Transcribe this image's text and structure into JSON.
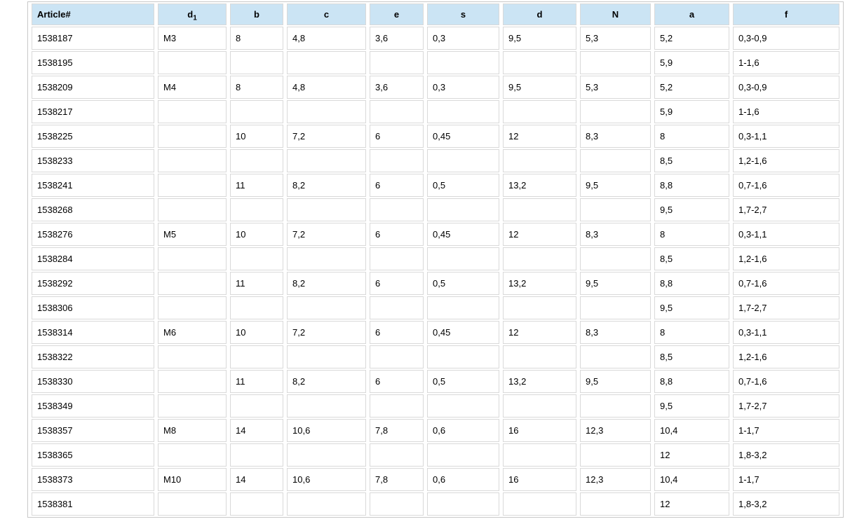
{
  "colors": {
    "header_bg": "#cbe4f4",
    "cell_border": "#d9d9d9",
    "outer_border": "#c9c9c9",
    "text": "#000000",
    "page_bg": "#ffffff"
  },
  "table": {
    "columns": [
      {
        "id": "article",
        "label": "Article#",
        "align": "left"
      },
      {
        "id": "d1",
        "label": "d",
        "subscript": "1",
        "align": "center"
      },
      {
        "id": "b",
        "label": "b",
        "align": "center"
      },
      {
        "id": "c",
        "label": "c",
        "align": "center"
      },
      {
        "id": "e",
        "label": "e",
        "align": "center"
      },
      {
        "id": "s",
        "label": "s",
        "align": "center"
      },
      {
        "id": "d",
        "label": "d",
        "align": "center"
      },
      {
        "id": "N",
        "label": "N",
        "align": "center"
      },
      {
        "id": "a",
        "label": "a",
        "align": "center"
      },
      {
        "id": "f",
        "label": "f",
        "align": "center"
      }
    ],
    "rows": [
      [
        "1538187",
        "M3",
        "8",
        "4,8",
        "3,6",
        "0,3",
        "9,5",
        "5,3",
        "5,2",
        "0,3-0,9"
      ],
      [
        "1538195",
        "",
        "",
        "",
        "",
        "",
        "",
        "",
        "5,9",
        "1-1,6"
      ],
      [
        "1538209",
        "M4",
        "8",
        "4,8",
        "3,6",
        "0,3",
        "9,5",
        "5,3",
        "5,2",
        "0,3-0,9"
      ],
      [
        "1538217",
        "",
        "",
        "",
        "",
        "",
        "",
        "",
        "5,9",
        "1-1,6"
      ],
      [
        "1538225",
        "",
        "10",
        "7,2",
        "6",
        "0,45",
        "12",
        "8,3",
        "8",
        "0,3-1,1"
      ],
      [
        "1538233",
        "",
        "",
        "",
        "",
        "",
        "",
        "",
        "8,5",
        "1,2-1,6"
      ],
      [
        "1538241",
        "",
        "11",
        "8,2",
        "6",
        "0,5",
        "13,2",
        "9,5",
        "8,8",
        "0,7-1,6"
      ],
      [
        "1538268",
        "",
        "",
        "",
        "",
        "",
        "",
        "",
        "9,5",
        "1,7-2,7"
      ],
      [
        "1538276",
        "M5",
        "10",
        "7,2",
        "6",
        "0,45",
        "12",
        "8,3",
        "8",
        "0,3-1,1"
      ],
      [
        "1538284",
        "",
        "",
        "",
        "",
        "",
        "",
        "",
        "8,5",
        "1,2-1,6"
      ],
      [
        "1538292",
        "",
        "11",
        "8,2",
        "6",
        "0,5",
        "13,2",
        "9,5",
        "8,8",
        "0,7-1,6"
      ],
      [
        "1538306",
        "",
        "",
        "",
        "",
        "",
        "",
        "",
        "9,5",
        "1,7-2,7"
      ],
      [
        "1538314",
        "M6",
        "10",
        "7,2",
        "6",
        "0,45",
        "12",
        "8,3",
        "8",
        "0,3-1,1"
      ],
      [
        "1538322",
        "",
        "",
        "",
        "",
        "",
        "",
        "",
        "8,5",
        "1,2-1,6"
      ],
      [
        "1538330",
        "",
        "11",
        "8,2",
        "6",
        "0,5",
        "13,2",
        "9,5",
        "8,8",
        "0,7-1,6"
      ],
      [
        "1538349",
        "",
        "",
        "",
        "",
        "",
        "",
        "",
        "9,5",
        "1,7-2,7"
      ],
      [
        "1538357",
        "M8",
        "14",
        "10,6",
        "7,8",
        "0,6",
        "16",
        "12,3",
        "10,4",
        "1-1,7"
      ],
      [
        "1538365",
        "",
        "",
        "",
        "",
        "",
        "",
        "",
        "12",
        "1,8-3,2"
      ],
      [
        "1538373",
        "M10",
        "14",
        "10,6",
        "7,8",
        "0,6",
        "16",
        "12,3",
        "10,4",
        "1-1,7"
      ],
      [
        "1538381",
        "",
        "",
        "",
        "",
        "",
        "",
        "",
        "12",
        "1,8-3,2"
      ]
    ]
  }
}
